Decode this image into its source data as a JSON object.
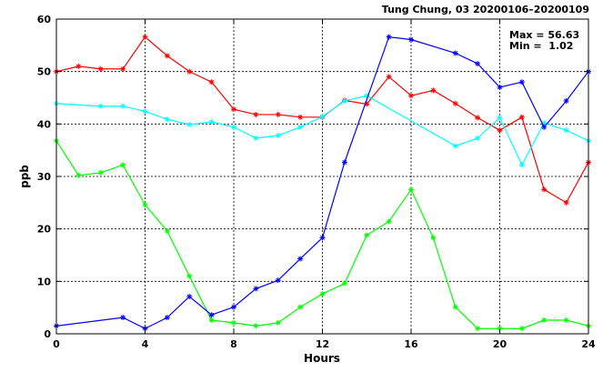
{
  "chart_data": {
    "type": "line",
    "title": "Tung Chung, 03 20200106–20200109",
    "stats": {
      "max_label": "Max = 56.63",
      "min_label": "Min =  1.02"
    },
    "xlabel": "Hours",
    "ylabel": "ppb",
    "xlim": [
      0,
      24
    ],
    "ylim": [
      0,
      60
    ],
    "xticks": [
      0,
      4,
      8,
      12,
      16,
      20,
      24
    ],
    "yticks": [
      0,
      10,
      20,
      30,
      40,
      50,
      60
    ],
    "grid": true,
    "x": [
      0,
      1,
      2,
      3,
      4,
      5,
      6,
      7,
      8,
      9,
      10,
      11,
      12,
      13,
      14,
      15,
      16,
      17,
      18,
      19,
      20,
      21,
      22,
      23,
      24
    ],
    "series": [
      {
        "color": "#ff0000",
        "values": [
          50.0,
          51.0,
          50.5,
          50.5,
          56.6,
          53.0,
          50.0,
          48.0,
          42.8,
          41.8,
          41.8,
          41.3,
          41.3,
          44.5,
          43.8,
          49.0,
          45.4,
          46.4,
          43.9,
          41.2,
          38.8,
          41.3,
          27.5,
          25.0,
          32.7
        ]
      },
      {
        "color": "#00ffff",
        "values": [
          43.9,
          null,
          43.4,
          43.4,
          42.4,
          40.9,
          39.9,
          40.4,
          39.4,
          37.3,
          37.8,
          39.4,
          41.4,
          44.4,
          45.4,
          null,
          null,
          null,
          35.8,
          37.3,
          41.2,
          32.2,
          40.2,
          38.8,
          36.8
        ]
      },
      {
        "color": "#00ff00",
        "values": [
          36.8,
          30.2,
          30.7,
          32.2,
          24.6,
          19.6,
          11.0,
          2.6,
          2.1,
          1.5,
          2.1,
          5.1,
          7.6,
          9.6,
          18.8,
          21.4,
          27.5,
          18.3,
          5.1,
          1.0,
          1.0,
          1.0,
          2.6,
          2.6,
          1.5
        ]
      },
      {
        "color": "#0000ff",
        "values": [
          1.5,
          null,
          null,
          3.1,
          1.0,
          3.1,
          7.1,
          3.6,
          5.1,
          8.6,
          10.2,
          14.3,
          18.3,
          32.7,
          null,
          56.6,
          56.1,
          null,
          53.5,
          51.5,
          47.0,
          48.0,
          39.4,
          44.4,
          50.0
        ]
      }
    ]
  }
}
